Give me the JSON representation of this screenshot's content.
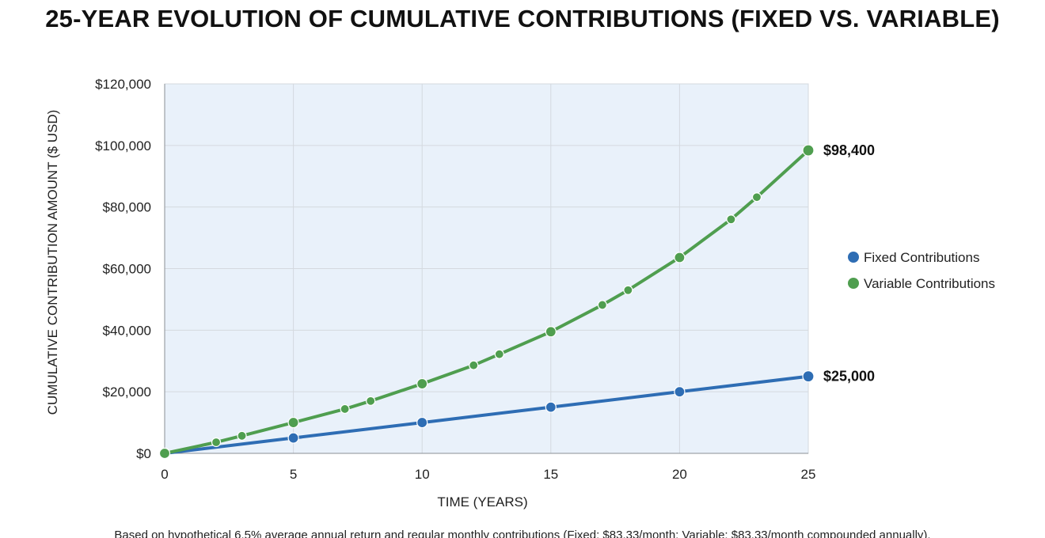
{
  "page_title": "25-YEAR EVOLUTION OF CUMULATIVE CONTRIBUTIONS (FIXED VS. VARIABLE)",
  "footnote": "Based on hypothetical 6.5% average annual return and regular monthly contributions (Fixed: $83.33/month; Variable: $83.33/month compounded annually).",
  "colors": {
    "fixed": "#2e6db4",
    "variable": "#4f9e4f",
    "plot_background": "#e9f1fa",
    "grid": "#d4d9df"
  },
  "chart_data": {
    "type": "line",
    "title": "25-YEAR EVOLUTION OF CUMULATIVE CONTRIBUTIONS (FIXED VS. VARIABLE)",
    "xlabel": "TIME (YEARS)",
    "ylabel": "CUMULATIVE CONTRIBUTION AMOUNT ($ USD)",
    "xlim": [
      0,
      25
    ],
    "ylim": [
      0,
      120000
    ],
    "x_ticks": [
      0,
      5,
      10,
      15,
      20,
      25
    ],
    "x_tick_labels": [
      "0",
      "5",
      "10",
      "15",
      "20",
      "25"
    ],
    "y_ticks": [
      0,
      20000,
      40000,
      60000,
      80000,
      100000,
      120000
    ],
    "y_tick_labels": [
      "$0",
      "$20,000",
      "$40,000",
      "$60,000",
      "$80,000",
      "$100,000",
      "$120,000"
    ],
    "grid": true,
    "legend_position": "right",
    "series": [
      {
        "name": "Fixed Contributions",
        "color": "#2e6db4",
        "points": [
          {
            "x": 0,
            "y": 0
          },
          {
            "x": 5,
            "y": 5000
          },
          {
            "x": 10,
            "y": 10000
          },
          {
            "x": 15,
            "y": 15000
          },
          {
            "x": 20,
            "y": 20000
          },
          {
            "x": 25,
            "y": 25000
          }
        ],
        "end_label": "$25,000"
      },
      {
        "name": "Variable Contributions",
        "color": "#4f9e4f",
        "points": [
          {
            "x": 0,
            "y": 0
          },
          {
            "x": 2,
            "y": 3600
          },
          {
            "x": 3,
            "y": 5700
          },
          {
            "x": 5,
            "y": 10000
          },
          {
            "x": 7,
            "y": 14400
          },
          {
            "x": 8,
            "y": 17000
          },
          {
            "x": 10,
            "y": 22600
          },
          {
            "x": 12,
            "y": 28600
          },
          {
            "x": 13,
            "y": 32200
          },
          {
            "x": 15,
            "y": 39500
          },
          {
            "x": 17,
            "y": 48200
          },
          {
            "x": 18,
            "y": 53000
          },
          {
            "x": 20,
            "y": 63600
          },
          {
            "x": 22,
            "y": 76000
          },
          {
            "x": 23,
            "y": 83200
          },
          {
            "x": 25,
            "y": 98400
          }
        ],
        "end_label": "$98,400"
      }
    ]
  }
}
